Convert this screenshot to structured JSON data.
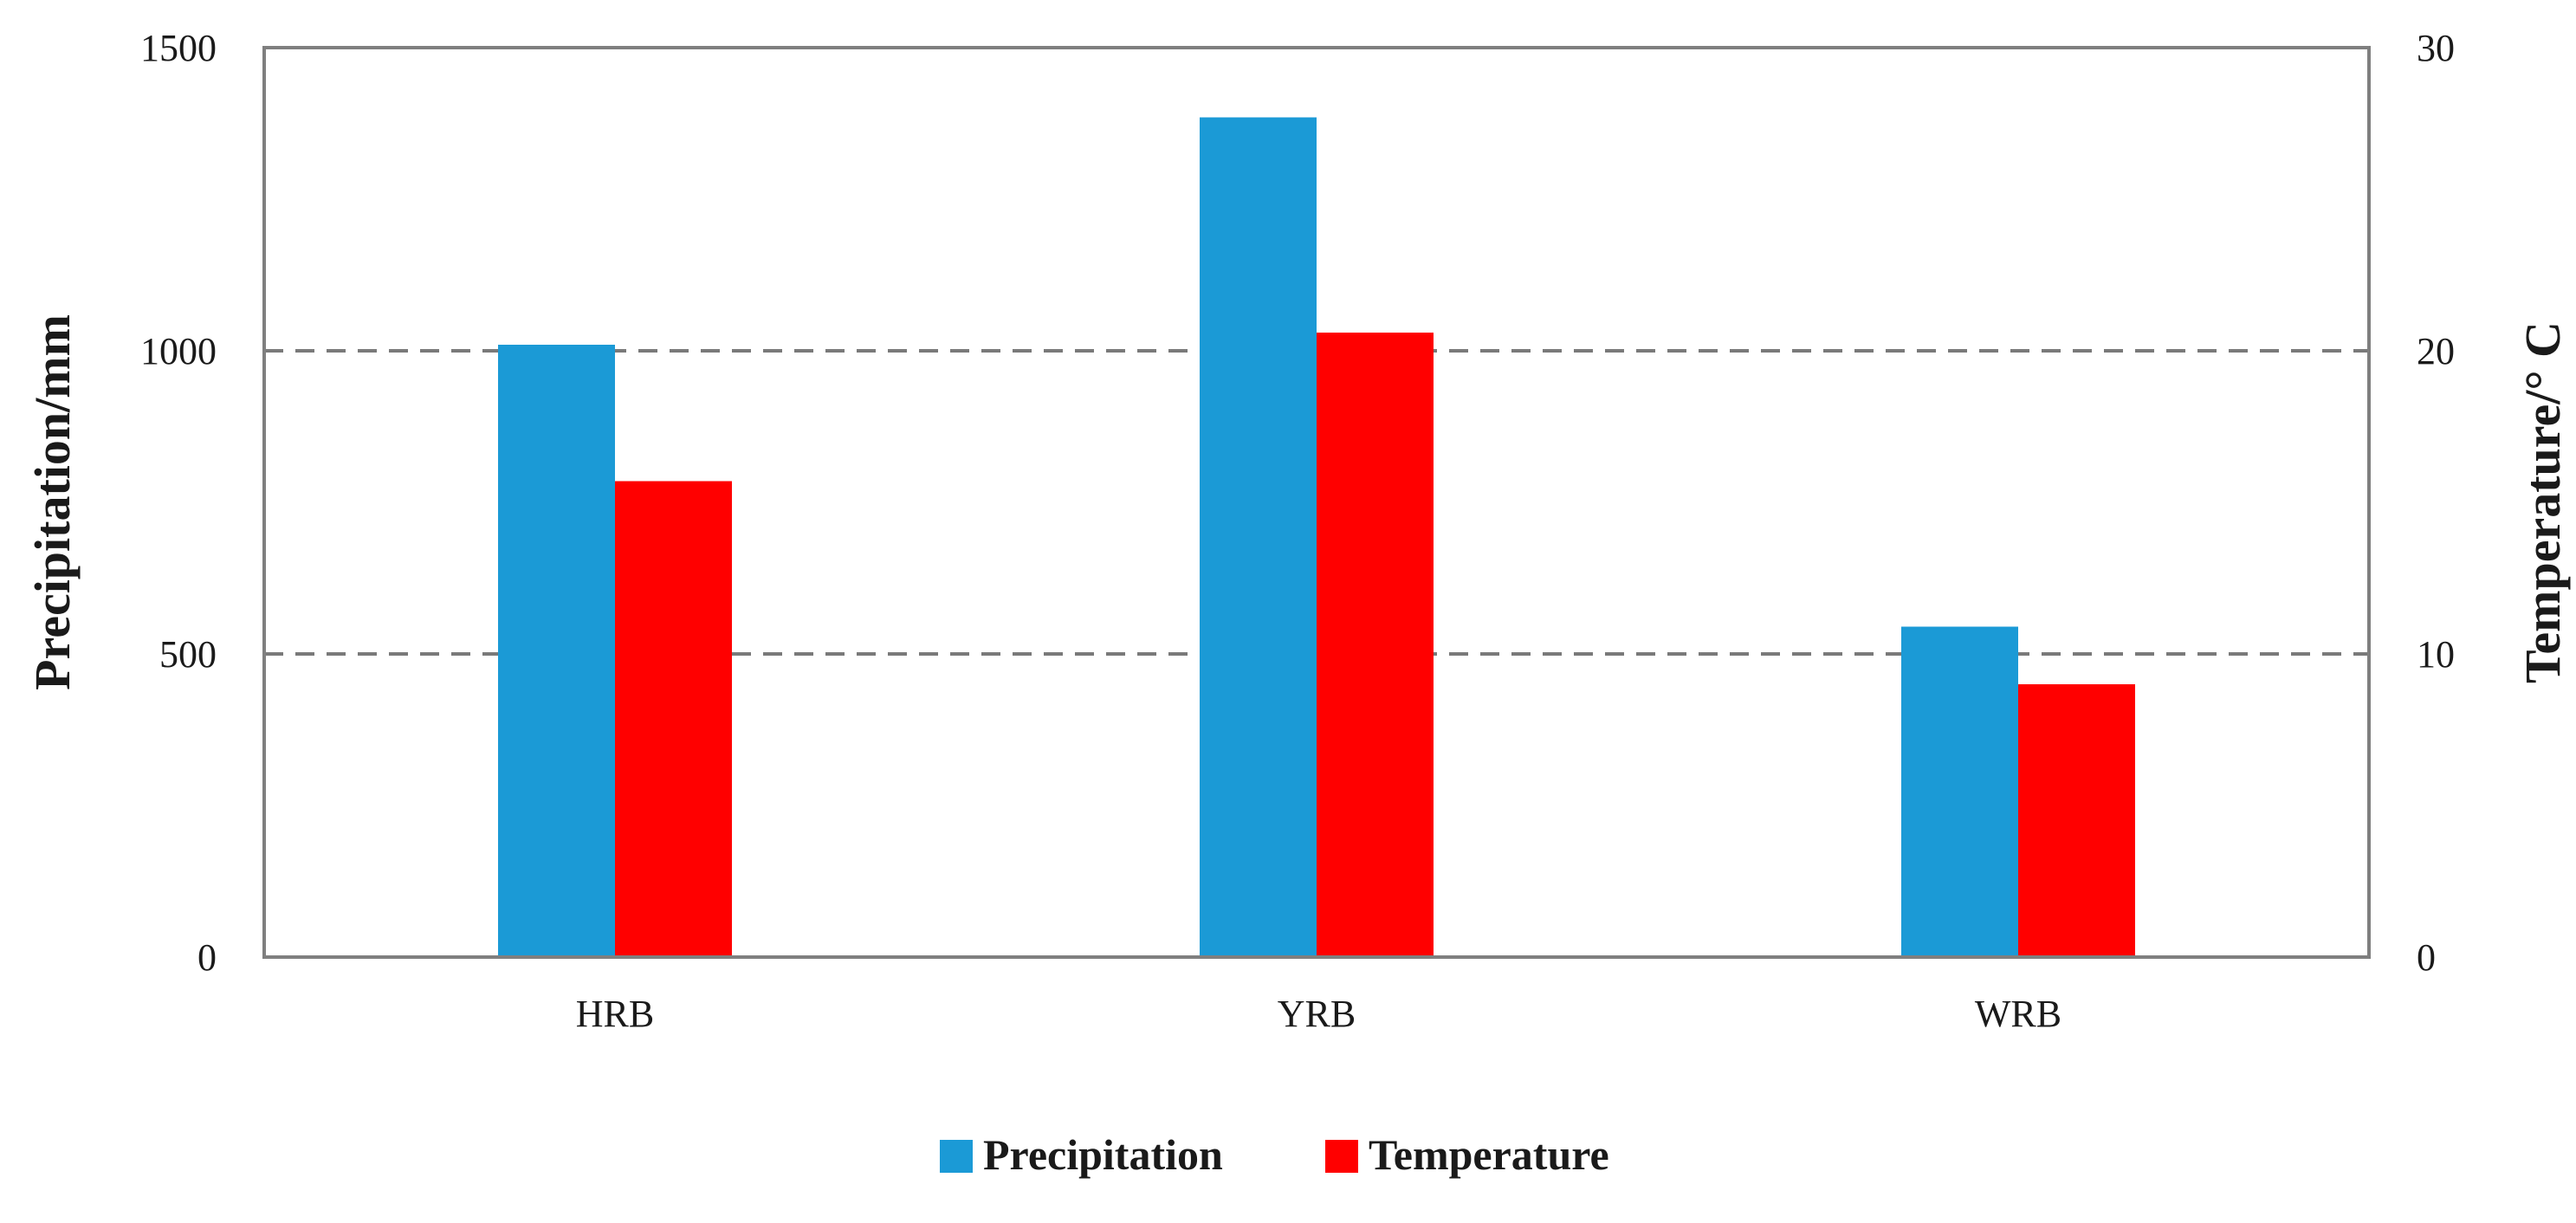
{
  "chart_data": {
    "type": "bar",
    "categories": [
      "HRB",
      "YRB",
      "WRB"
    ],
    "series": [
      {
        "name": "Precipitation",
        "axis": "left",
        "color": "#1b9ad6",
        "values": [
          1010,
          1385,
          545
        ]
      },
      {
        "name": "Temperature",
        "axis": "right",
        "color": "#ff0000",
        "values": [
          15.7,
          20.6,
          9.0
        ]
      }
    ],
    "ylabel": "Precipitation/mm",
    "y2label": "Temperature/° C",
    "ylim": [
      0,
      1500
    ],
    "y2lim": [
      0,
      30
    ],
    "yticks": [
      "0",
      "500",
      "1000",
      "1500"
    ],
    "y2ticks": [
      "0",
      "10",
      "20",
      "30"
    ],
    "grid": "dashed horizontal",
    "legend": "bottom-center"
  }
}
